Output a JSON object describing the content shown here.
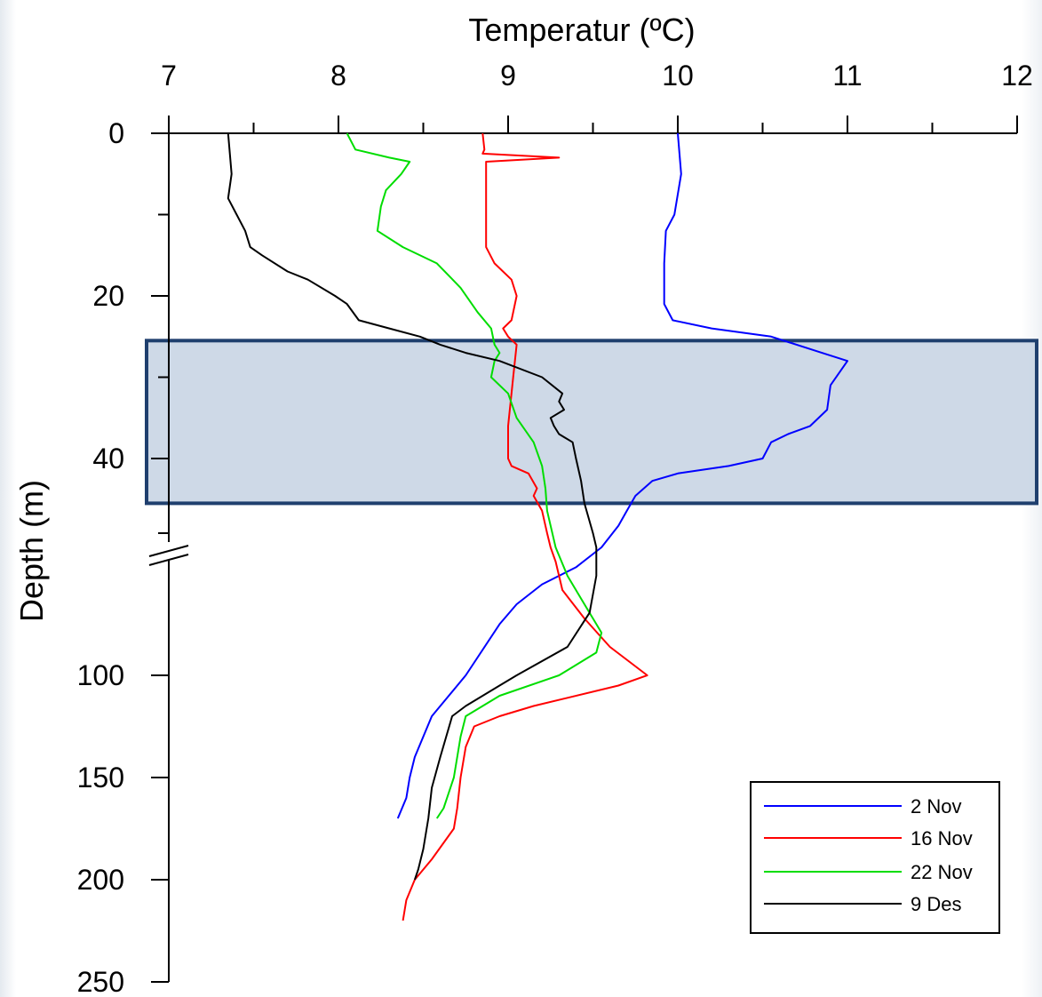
{
  "chart_data": {
    "type": "line",
    "x_axis": {
      "title": "Temperatur (ºC)",
      "position": "top",
      "range": [
        7,
        12
      ],
      "tick_labels": [
        "7",
        "8",
        "9",
        "10",
        "11",
        "12"
      ]
    },
    "y_axis": {
      "title": "Depth (m)",
      "inverted": true,
      "broken": true,
      "upper_segment": {
        "range": [
          0,
          50
        ],
        "tick_labels": [
          "0",
          "20",
          "40"
        ]
      },
      "lower_segment": {
        "range": [
          50,
          250
        ],
        "tick_labels": [
          "100",
          "150",
          "200",
          "250"
        ]
      }
    },
    "highlight_band": {
      "depth_from": 25.5,
      "depth_to": 46,
      "color": "#1f3f6e"
    },
    "legend": {
      "position": "bottom-right",
      "entries": [
        "2 Nov",
        "16 Nov",
        "22 Nov",
        "9 Des"
      ]
    },
    "series": [
      {
        "name": "2 Nov",
        "color": "#0000ff",
        "points": [
          [
            10.0,
            0
          ],
          [
            10.02,
            5
          ],
          [
            9.98,
            10
          ],
          [
            9.93,
            12
          ],
          [
            9.92,
            16
          ],
          [
            9.92,
            21
          ],
          [
            9.97,
            23
          ],
          [
            10.2,
            24
          ],
          [
            10.55,
            25
          ],
          [
            10.85,
            27
          ],
          [
            11.0,
            28
          ],
          [
            10.9,
            31
          ],
          [
            10.88,
            34
          ],
          [
            10.78,
            36
          ],
          [
            10.65,
            37
          ],
          [
            10.55,
            38
          ],
          [
            10.5,
            40
          ],
          [
            10.3,
            41
          ],
          [
            10.0,
            42
          ],
          [
            9.85,
            43
          ],
          [
            9.75,
            45
          ],
          [
            9.7,
            47
          ],
          [
            9.65,
            49
          ],
          [
            9.55,
            55
          ],
          [
            9.4,
            62
          ],
          [
            9.2,
            68
          ],
          [
            9.05,
            75
          ],
          [
            8.95,
            82
          ],
          [
            8.75,
            100
          ],
          [
            8.55,
            120
          ],
          [
            8.45,
            140
          ],
          [
            8.42,
            150
          ],
          [
            8.4,
            160
          ],
          [
            8.35,
            170
          ]
        ]
      },
      {
        "name": "16 Nov",
        "color": "#ff0000",
        "points": [
          [
            8.85,
            0
          ],
          [
            8.86,
            2
          ],
          [
            8.85,
            2.5
          ],
          [
            9.3,
            3
          ],
          [
            8.87,
            3.5
          ],
          [
            8.87,
            5
          ],
          [
            8.87,
            10
          ],
          [
            8.87,
            14
          ],
          [
            8.92,
            16
          ],
          [
            9.02,
            18
          ],
          [
            9.05,
            20
          ],
          [
            9.02,
            23
          ],
          [
            8.97,
            24
          ],
          [
            9.0,
            25
          ],
          [
            9.05,
            26
          ],
          [
            9.03,
            30
          ],
          [
            9.0,
            36
          ],
          [
            9.0,
            40
          ],
          [
            9.02,
            41
          ],
          [
            9.12,
            42
          ],
          [
            9.17,
            44
          ],
          [
            9.15,
            45
          ],
          [
            9.2,
            47
          ],
          [
            9.23,
            50
          ],
          [
            9.25,
            55
          ],
          [
            9.28,
            60
          ],
          [
            9.32,
            70
          ],
          [
            9.45,
            80
          ],
          [
            9.6,
            90
          ],
          [
            9.82,
            100
          ],
          [
            9.65,
            105
          ],
          [
            9.15,
            115
          ],
          [
            8.95,
            120
          ],
          [
            8.8,
            125
          ],
          [
            8.75,
            135
          ],
          [
            8.72,
            150
          ],
          [
            8.7,
            165
          ],
          [
            8.68,
            175
          ],
          [
            8.55,
            190
          ],
          [
            8.45,
            200
          ],
          [
            8.4,
            210
          ],
          [
            8.38,
            220
          ]
        ]
      },
      {
        "name": "22 Nov",
        "color": "#00dd00",
        "points": [
          [
            8.05,
            0
          ],
          [
            8.1,
            2
          ],
          [
            8.3,
            3
          ],
          [
            8.42,
            3.5
          ],
          [
            8.37,
            5
          ],
          [
            8.28,
            7
          ],
          [
            8.25,
            9
          ],
          [
            8.23,
            12
          ],
          [
            8.38,
            14
          ],
          [
            8.58,
            16
          ],
          [
            8.72,
            19
          ],
          [
            8.82,
            22
          ],
          [
            8.9,
            24
          ],
          [
            8.92,
            26
          ],
          [
            8.95,
            27
          ],
          [
            8.92,
            28
          ],
          [
            8.9,
            30
          ],
          [
            9.0,
            32
          ],
          [
            9.05,
            35
          ],
          [
            9.15,
            38
          ],
          [
            9.2,
            41
          ],
          [
            9.22,
            44
          ],
          [
            9.23,
            47
          ],
          [
            9.28,
            55
          ],
          [
            9.35,
            65
          ],
          [
            9.45,
            75
          ],
          [
            9.55,
            85
          ],
          [
            9.52,
            92
          ],
          [
            9.3,
            100
          ],
          [
            8.95,
            110
          ],
          [
            8.75,
            120
          ],
          [
            8.72,
            130
          ],
          [
            8.68,
            150
          ],
          [
            8.62,
            165
          ],
          [
            8.58,
            170
          ]
        ]
      },
      {
        "name": "9 Des",
        "color": "#000000",
        "points": [
          [
            7.35,
            0
          ],
          [
            7.37,
            5
          ],
          [
            7.35,
            8
          ],
          [
            7.4,
            10
          ],
          [
            7.45,
            12
          ],
          [
            7.48,
            14
          ],
          [
            7.55,
            15
          ],
          [
            7.7,
            17
          ],
          [
            7.82,
            18
          ],
          [
            7.98,
            20
          ],
          [
            8.05,
            21
          ],
          [
            8.12,
            23
          ],
          [
            8.3,
            24
          ],
          [
            8.48,
            25
          ],
          [
            8.6,
            26
          ],
          [
            8.75,
            27
          ],
          [
            8.95,
            28
          ],
          [
            9.2,
            30
          ],
          [
            9.32,
            32
          ],
          [
            9.3,
            33
          ],
          [
            9.33,
            34
          ],
          [
            9.25,
            35
          ],
          [
            9.27,
            36
          ],
          [
            9.3,
            37
          ],
          [
            9.38,
            38
          ],
          [
            9.4,
            40
          ],
          [
            9.43,
            43
          ],
          [
            9.45,
            46
          ],
          [
            9.5,
            50
          ],
          [
            9.52,
            55
          ],
          [
            9.52,
            65
          ],
          [
            9.48,
            78
          ],
          [
            9.35,
            90
          ],
          [
            9.05,
            100
          ],
          [
            8.95,
            105
          ],
          [
            8.75,
            115
          ],
          [
            8.67,
            120
          ],
          [
            8.6,
            140
          ],
          [
            8.55,
            155
          ],
          [
            8.53,
            170
          ],
          [
            8.5,
            185
          ],
          [
            8.47,
            195
          ],
          [
            8.45,
            200
          ]
        ]
      }
    ]
  }
}
